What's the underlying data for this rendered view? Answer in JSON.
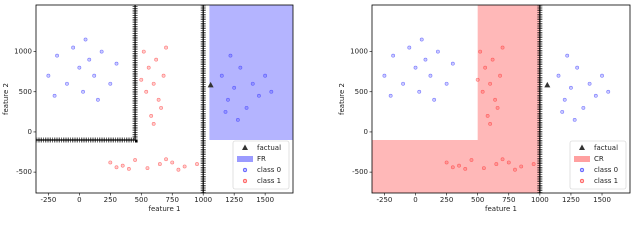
{
  "chart_data": [
    {
      "type": "scatter",
      "xlabel": "feature 1",
      "ylabel": "feature 2",
      "xlim": [
        -350,
        1725
      ],
      "ylim": [
        -760,
        1580
      ],
      "xticks": [
        -250,
        0,
        250,
        500,
        750,
        1000,
        1250,
        1500
      ],
      "yticks": [
        -500,
        0,
        500,
        1000
      ],
      "legend": "lower right",
      "region": {
        "name": "FR",
        "color": "#9b9bff",
        "x": [
          1050,
          1725,
          1725,
          1050
        ],
        "y": [
          -100,
          -100,
          1580,
          1580
        ]
      },
      "boundaries": [
        {
          "x": [
            -350,
            450,
            450
          ],
          "y": [
            -100,
            -100,
            1580
          ]
        },
        {
          "x": [
            1000,
            1000
          ],
          "y": [
            1580,
            -760
          ]
        }
      ],
      "factual": {
        "name": "factual",
        "color": "#333333",
        "x": 1060,
        "y": 580
      },
      "series": [
        {
          "name": "class 0",
          "color": "#3030ff",
          "x": [
            -250,
            -180,
            -100,
            -50,
            0,
            30,
            80,
            120,
            180,
            250,
            300,
            -200,
            50,
            150,
            1150,
            1200,
            1250,
            1300,
            1350,
            1400,
            1450,
            1500,
            1220,
            1280,
            1550,
            1180
          ],
          "y": [
            700,
            950,
            600,
            1050,
            800,
            500,
            900,
            700,
            1000,
            600,
            850,
            450,
            1150,
            400,
            700,
            400,
            550,
            800,
            300,
            600,
            450,
            700,
            950,
            150,
            500,
            250
          ]
        },
        {
          "name": "class 1",
          "color": "#ff3030",
          "x": [
            520,
            560,
            600,
            640,
            580,
            620,
            680,
            540,
            600,
            660,
            700,
            500,
            250,
            350,
            450,
            550,
            650,
            750,
            850,
            950,
            400,
            700,
            300,
            800
          ],
          "y": [
            1000,
            800,
            600,
            400,
            200,
            900,
            700,
            500,
            100,
            300,
            1050,
            650,
            -380,
            -420,
            -350,
            -450,
            -400,
            -380,
            -430,
            -400,
            -460,
            -340,
            -440,
            -470
          ]
        }
      ]
    },
    {
      "type": "scatter",
      "xlabel": "feature 1",
      "ylabel": "feature 2",
      "xlim": [
        -350,
        1725
      ],
      "ylim": [
        -760,
        1580
      ],
      "xticks": [
        -250,
        0,
        250,
        500,
        750,
        1000,
        1250,
        1500
      ],
      "yticks": [
        -500,
        0,
        500,
        1000
      ],
      "legend": "lower right",
      "region": {
        "name": "CR",
        "color": "#ffa0a0",
        "x": [
          500,
          1000,
          1000,
          -350,
          -350,
          500
        ],
        "y": [
          1580,
          1580,
          -760,
          -760,
          -100,
          -100
        ]
      },
      "boundaries": [
        {
          "x": [
            1000,
            1000
          ],
          "y": [
            1580,
            -760
          ]
        }
      ],
      "factual": {
        "name": "factual",
        "color": "#333333",
        "x": 1060,
        "y": 580
      },
      "series": [
        {
          "name": "class 0",
          "color": "#3030ff",
          "x": [
            -250,
            -180,
            -100,
            -50,
            0,
            30,
            80,
            120,
            180,
            250,
            300,
            -200,
            50,
            150,
            1150,
            1200,
            1250,
            1300,
            1350,
            1400,
            1450,
            1500,
            1220,
            1280,
            1550,
            1180
          ],
          "y": [
            700,
            950,
            600,
            1050,
            800,
            500,
            900,
            700,
            1000,
            600,
            850,
            450,
            1150,
            400,
            700,
            400,
            550,
            800,
            300,
            600,
            450,
            700,
            950,
            150,
            500,
            250
          ]
        },
        {
          "name": "class 1",
          "color": "#ff3030",
          "x": [
            520,
            560,
            600,
            640,
            580,
            620,
            680,
            540,
            600,
            660,
            700,
            500,
            250,
            350,
            450,
            550,
            650,
            750,
            850,
            950,
            400,
            700,
            300,
            800
          ],
          "y": [
            1000,
            800,
            600,
            400,
            200,
            900,
            700,
            500,
            100,
            300,
            1050,
            650,
            -380,
            -420,
            -350,
            -450,
            -400,
            -380,
            -430,
            -400,
            -460,
            -340,
            -440,
            -470
          ]
        }
      ]
    }
  ]
}
